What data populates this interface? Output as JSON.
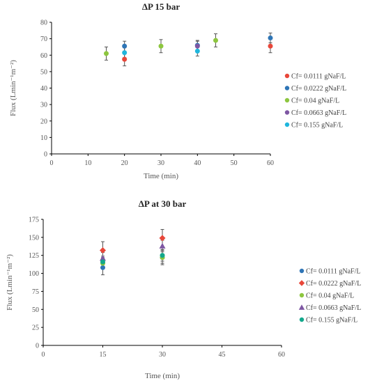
{
  "chart_data": [
    {
      "type": "scatter",
      "title": "ΔP 15 bar",
      "xlabel": "Time (min)",
      "ylabel": "Flux (Lmin⁻¹m⁻²)",
      "xlim": [
        0,
        60
      ],
      "ylim": [
        0,
        80
      ],
      "xticks": [
        0,
        10,
        20,
        30,
        40,
        50,
        60
      ],
      "yticks": [
        0,
        10,
        20,
        30,
        40,
        50,
        60,
        70,
        80
      ],
      "grid": false,
      "legend_position": "right",
      "series": [
        {
          "name": "Cf= 0.0111 gNaF/L",
          "color": "#E8473A",
          "marker": "circle",
          "points": [
            {
              "x": 20,
              "y": 57.5,
              "err": 4
            },
            {
              "x": 60,
              "y": 65.5,
              "err": 4
            }
          ]
        },
        {
          "name": "Cf= 0.0222 gNaF/L",
          "color": "#2E75B6",
          "marker": "circle",
          "points": [
            {
              "x": 20,
              "y": 65.5,
              "err": 3
            },
            {
              "x": 40,
              "y": 66,
              "err": 3
            },
            {
              "x": 60,
              "y": 70.5,
              "err": 3
            }
          ]
        },
        {
          "name": "Cf= 0.04 gNaF/L",
          "color": "#8DC63F",
          "marker": "circle",
          "points": [
            {
              "x": 15,
              "y": 61,
              "err": 4
            },
            {
              "x": 30,
              "y": 65.5,
              "err": 4
            },
            {
              "x": 45,
              "y": 69,
              "err": 4
            }
          ]
        },
        {
          "name": "Cf= 0.0663 gNaF/L",
          "color": "#7E57A3",
          "marker": "circle",
          "points": [
            {
              "x": 40,
              "y": 65.5,
              "err": 3
            }
          ]
        },
        {
          "name": "Cf= 0.155 gNaF/L",
          "color": "#1FB6DD",
          "marker": "circle",
          "points": [
            {
              "x": 20,
              "y": 61.5,
              "err": 3
            },
            {
              "x": 40,
              "y": 62.5,
              "err": 3
            }
          ]
        }
      ]
    },
    {
      "type": "scatter",
      "title": "ΔP at 30 bar",
      "xlabel": "Time (min)",
      "ylabel": "Flux (Lmin⁻¹m⁻²)",
      "xlim": [
        0,
        60
      ],
      "ylim": [
        0,
        175
      ],
      "xticks": [
        0,
        15,
        30,
        45,
        60
      ],
      "yticks": [
        0,
        25,
        50,
        75,
        100,
        125,
        150,
        175
      ],
      "grid": false,
      "legend_position": "right",
      "series": [
        {
          "name": "Cf= 0.0111 gNaF/L",
          "color": "#2E75B6",
          "marker": "circle",
          "points": [
            {
              "x": 15,
              "y": 108,
              "err": 10
            },
            {
              "x": 30,
              "y": 122,
              "err": 10
            }
          ]
        },
        {
          "name": "Cf= 0.0222 gNaF/L",
          "color": "#E8473A",
          "marker": "diamond",
          "points": [
            {
              "x": 15,
              "y": 132,
              "err": 12
            },
            {
              "x": 30,
              "y": 149,
              "err": 12
            }
          ]
        },
        {
          "name": "Cf= 0.04 gNaF/L",
          "color": "#8DC63F",
          "marker": "circle",
          "points": [
            {
              "x": 15,
              "y": 114,
              "err": 8
            },
            {
              "x": 30,
              "y": 122,
              "err": 8
            }
          ]
        },
        {
          "name": "Cf= 0.0663 gNaF/L",
          "color": "#7E57A3",
          "marker": "triangle",
          "points": [
            {
              "x": 15,
              "y": 121,
              "err": 8
            },
            {
              "x": 30,
              "y": 138,
              "err": 8
            }
          ]
        },
        {
          "name": "Cf= 0.155 gNaF/L",
          "color": "#12A88C",
          "marker": "circle",
          "points": [
            {
              "x": 15,
              "y": 116,
              "err": 8
            },
            {
              "x": 30,
              "y": 125,
              "err": 8
            }
          ]
        }
      ]
    }
  ]
}
